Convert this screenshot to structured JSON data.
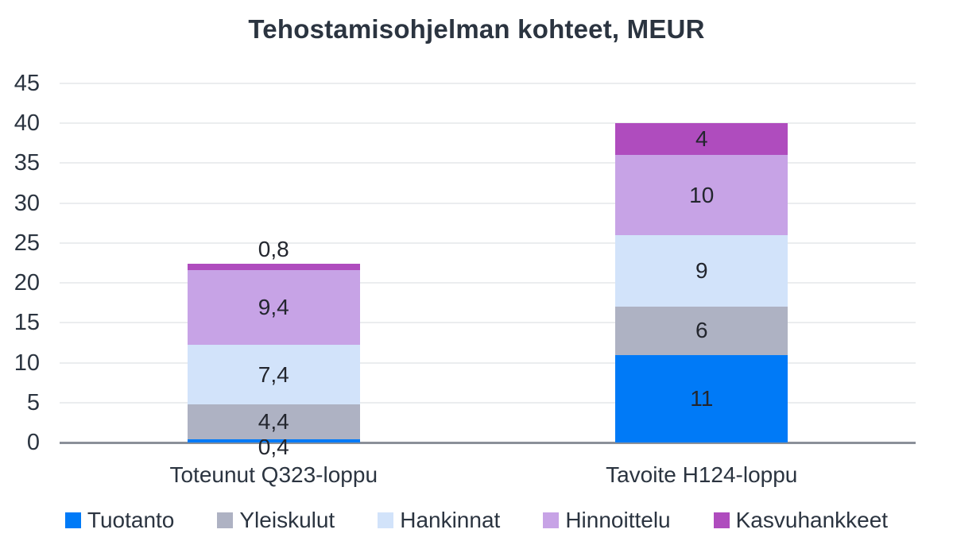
{
  "title": "Tehostamisohjelman kohteet, MEUR",
  "chart_data": {
    "type": "bar",
    "stacked": true,
    "title": "Tehostamisohjelman kohteet, MEUR",
    "categories": [
      "Toteunut Q323-loppu",
      "Tavoite H124-loppu"
    ],
    "series": [
      {
        "name": "Tuotanto",
        "color": "#007af7",
        "values": [
          0.4,
          11
        ],
        "labels": [
          "0,4",
          "11"
        ]
      },
      {
        "name": "Yleiskulut",
        "color": "#aeb2c3",
        "values": [
          4.4,
          6
        ],
        "labels": [
          "4,4",
          "6"
        ]
      },
      {
        "name": "Hankinnat",
        "color": "#d2e3fa",
        "values": [
          7.4,
          9
        ],
        "labels": [
          "7,4",
          "9"
        ]
      },
      {
        "name": "Hinnoittelu",
        "color": "#c7a3e6",
        "values": [
          9.4,
          10
        ],
        "labels": [
          "9,4",
          "10"
        ]
      },
      {
        "name": "Kasvuhankkeet",
        "color": "#af4cbe",
        "values": [
          0.8,
          4
        ],
        "labels": [
          "0,8",
          "4"
        ]
      }
    ],
    "totals": [
      22.4,
      40
    ],
    "ylim": [
      0,
      45
    ],
    "yticks": [
      0,
      5,
      10,
      15,
      20,
      25,
      30,
      35,
      40,
      45
    ],
    "grid": true,
    "legend_position": "bottom",
    "value_format": "decimal-comma"
  },
  "colors": {
    "title_text": "#2b3440",
    "axis_text": "#2b3440",
    "data_label_text": "#23262e",
    "gridline": "#ebedef",
    "baseline": "#8b9099",
    "background": "#ffffff"
  }
}
